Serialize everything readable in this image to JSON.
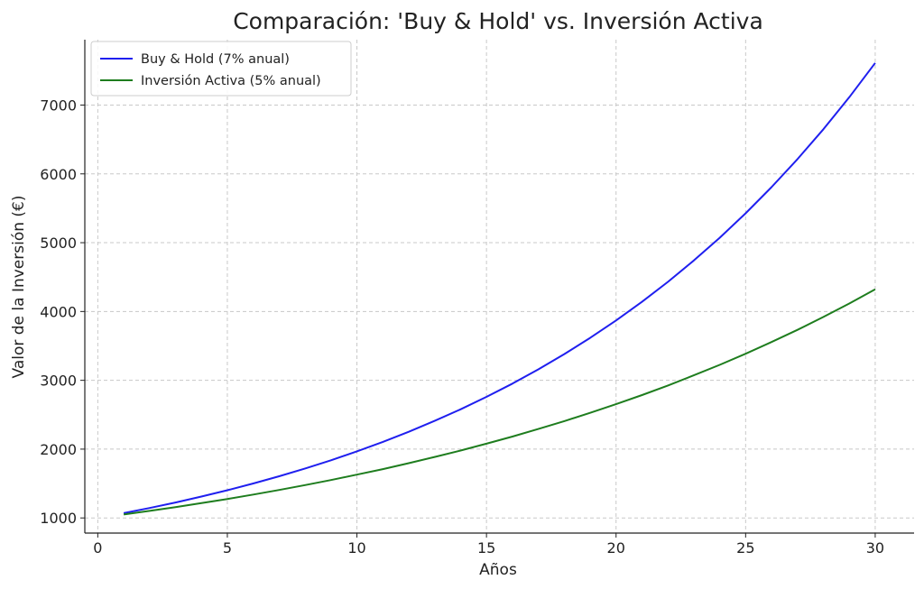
{
  "chart_data": {
    "type": "line",
    "title": "Comparación: 'Buy & Hold' vs. Inversión Activa",
    "xlabel": "Años",
    "ylabel": "Valor de la Inversión (€)",
    "xlim": [
      -0.5,
      31.5
    ],
    "ylim": [
      780,
      7950
    ],
    "x_ticks": [
      0,
      5,
      10,
      15,
      20,
      25,
      30
    ],
    "y_ticks": [
      1000,
      2000,
      3000,
      4000,
      5000,
      6000,
      7000
    ],
    "grid": true,
    "legend_position": "top-left",
    "x": [
      1,
      2,
      3,
      4,
      5,
      6,
      7,
      8,
      9,
      10,
      11,
      12,
      13,
      14,
      15,
      16,
      17,
      18,
      19,
      20,
      21,
      22,
      23,
      24,
      25,
      26,
      27,
      28,
      29,
      30
    ],
    "series": [
      {
        "name": "Buy & Hold (7% anual)",
        "color": "#1f1fef",
        "values": [
          1070,
          1145,
          1225,
          1311,
          1403,
          1501,
          1606,
          1718,
          1838,
          1967,
          2105,
          2252,
          2410,
          2579,
          2759,
          2952,
          3159,
          3380,
          3617,
          3870,
          4141,
          4430,
          4741,
          5072,
          5427,
          5807,
          6214,
          6649,
          7114,
          7612
        ]
      },
      {
        "name": "Inversión Activa (5% anual)",
        "color": "#1e7d1e",
        "values": [
          1050,
          1103,
          1158,
          1216,
          1276,
          1340,
          1407,
          1477,
          1551,
          1629,
          1710,
          1796,
          1886,
          1980,
          2079,
          2183,
          2292,
          2407,
          2527,
          2653,
          2786,
          2925,
          3072,
          3225,
          3386,
          3556,
          3733,
          3920,
          4116,
          4322
        ]
      }
    ]
  }
}
